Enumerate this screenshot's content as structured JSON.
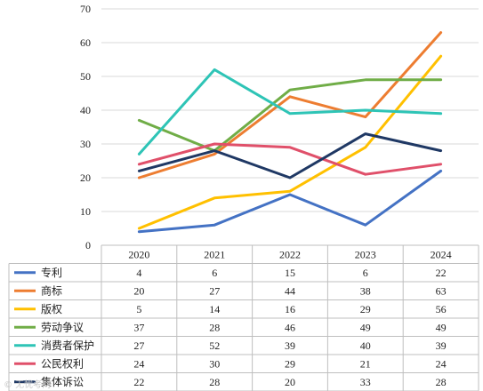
{
  "chart_data": {
    "type": "line",
    "title": "",
    "xlabel": "",
    "ylabel": "",
    "categories": [
      "2020",
      "2021",
      "2022",
      "2023",
      "2024"
    ],
    "ylim": [
      0,
      70
    ],
    "yticks": [
      0,
      10,
      20,
      30,
      40,
      50,
      60,
      70
    ],
    "grid": true,
    "legend_placement": "data-table-left",
    "series": [
      {
        "name": "专利",
        "color": "#4472C4",
        "values": [
          4,
          6,
          15,
          6,
          22
        ]
      },
      {
        "name": "商标",
        "color": "#ED7D31",
        "values": [
          20,
          27,
          44,
          38,
          63
        ]
      },
      {
        "name": "版权",
        "color": "#FFC000",
        "values": [
          5,
          14,
          16,
          29,
          56
        ]
      },
      {
        "name": "劳动争议",
        "color": "#70AD47",
        "values": [
          37,
          28,
          46,
          49,
          49
        ]
      },
      {
        "name": "消费者保护",
        "color": "#2EC4B6",
        "values": [
          27,
          52,
          39,
          40,
          39
        ]
      },
      {
        "name": "公民权利",
        "color": "#E0506A",
        "values": [
          24,
          30,
          29,
          21,
          24
        ]
      },
      {
        "name": "集体诉讼",
        "color": "#1F3864",
        "values": [
          22,
          28,
          20,
          33,
          28
        ]
      }
    ]
  },
  "watermark": {
    "text": "© 无忧考网"
  }
}
